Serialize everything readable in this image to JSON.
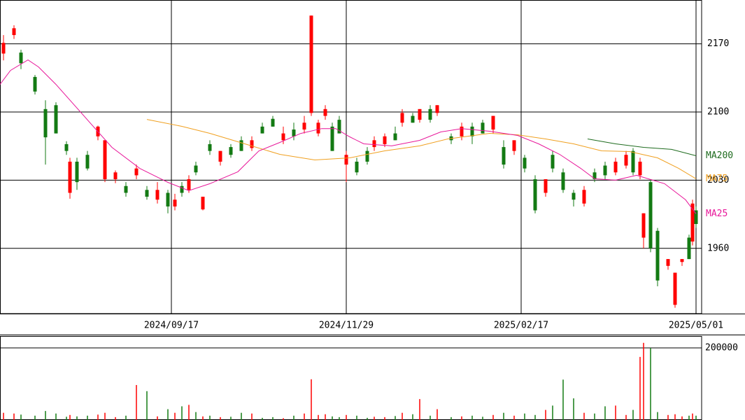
{
  "chart_data": {
    "type": "candlestick",
    "x": [
      1,
      4,
      6,
      10,
      13,
      16,
      19,
      20,
      22,
      25,
      28,
      30,
      33,
      36,
      39,
      42,
      45,
      48,
      50,
      52,
      54,
      56,
      58,
      60,
      63,
      66,
      69,
      72,
      75,
      78,
      81,
      84,
      87,
      89,
      91,
      93,
      95,
      97,
      99,
      102,
      105,
      107,
      110,
      113,
      115,
      118,
      120,
      123,
      125,
      129,
      132,
      135,
      138,
      141,
      144,
      147,
      150,
      153,
      156,
      158,
      161,
      164,
      167,
      170,
      173,
      176,
      179,
      181,
      183,
      184,
      186,
      188,
      191,
      193,
      195,
      197,
      198,
      199
    ],
    "open": [
      2160,
      2179,
      2161,
      2136,
      2103,
      2107,
      2067,
      2017,
      2049,
      2056,
      2075,
      2031,
      2031,
      2024,
      2035,
      2020,
      2010,
      2017,
      2003,
      2024,
      2020,
      2045,
      2000,
      2067,
      2049,
      2064,
      2071,
      2063,
      2085,
      2093,
      2071,
      2082,
      2082,
      2099,
      2078,
      2096,
      2085,
      2092,
      2046,
      2049,
      2060,
      2064,
      2067,
      2078,
      2089,
      2096,
      2092,
      2103,
      2099,
      2075,
      2075,
      2085,
      2089,
      2082,
      2064,
      2060,
      2053,
      2031,
      2017,
      2056,
      2038,
      2017,
      2006,
      2038,
      2045,
      2038,
      2045,
      2060,
      2035,
      1971,
      2028,
      1978,
      1942,
      1902,
      1946,
      1971,
      1967,
      1999
    ],
    "high": [
      2179,
      2189,
      2164,
      2138,
      2112,
      2110,
      2070,
      2053,
      2053,
      2060,
      2086,
      2071,
      2040,
      2028,
      2046,
      2024,
      2028,
      2020,
      2016,
      2028,
      2035,
      2049,
      2013,
      2071,
      2060,
      2067,
      2075,
      2075,
      2089,
      2096,
      2085,
      2089,
      2096,
      2199,
      2092,
      2107,
      2089,
      2096,
      2060,
      2053,
      2064,
      2075,
      2078,
      2085,
      2103,
      2099,
      2103,
      2107,
      2107,
      2078,
      2089,
      2089,
      2092,
      2096,
      2071,
      2071,
      2056,
      2035,
      2031,
      2060,
      2042,
      2020,
      2024,
      2042,
      2049,
      2053,
      2060,
      2063,
      2053,
      1996,
      2031,
      1981,
      1949,
      1935,
      1949,
      1974,
      2010,
      2003
    ],
    "low": [
      2153,
      2175,
      2144,
      2118,
      2046,
      2078,
      2056,
      2011,
      2020,
      2040,
      2071,
      2028,
      2027,
      2013,
      2031,
      2010,
      2006,
      1996,
      1999,
      2013,
      2017,
      2035,
      1999,
      2056,
      2045,
      2053,
      2060,
      2060,
      2078,
      2085,
      2067,
      2071,
      2078,
      2096,
      2075,
      2092,
      2060,
      2078,
      2028,
      2035,
      2046,
      2060,
      2064,
      2071,
      2085,
      2089,
      2089,
      2089,
      2096,
      2067,
      2071,
      2067,
      2078,
      2078,
      2042,
      2056,
      2038,
      1996,
      2013,
      2038,
      2017,
      2003,
      2003,
      2028,
      2031,
      2035,
      2042,
      2035,
      2031,
      1960,
      1956,
      1921,
      1938,
      1899,
      1942,
      1949,
      1963,
      1981
    ],
    "close": [
      2171,
      2186,
      2150,
      2121,
      2074,
      2078,
      2060,
      2049,
      2028,
      2042,
      2085,
      2071,
      2038,
      2017,
      2042,
      2013,
      2020,
      2003,
      2010,
      2017,
      2031,
      2038,
      2013,
      2060,
      2060,
      2056,
      2060,
      2071,
      2078,
      2085,
      2078,
      2075,
      2089,
      2199,
      2089,
      2103,
      2060,
      2078,
      2056,
      2038,
      2049,
      2071,
      2075,
      2071,
      2099,
      2089,
      2103,
      2092,
      2107,
      2071,
      2085,
      2075,
      2078,
      2096,
      2046,
      2071,
      2042,
      1999,
      2031,
      2042,
      2020,
      2010,
      2020,
      2031,
      2035,
      2049,
      2056,
      2038,
      2049,
      1996,
      1960,
      1927,
      1949,
      1935,
      1949,
      1949,
      2006,
      1985
    ],
    "up_color": "#ff0000",
    "down_color": "#137a13",
    "xlim": [
      0,
      200.6
    ],
    "xticks": [
      {
        "value": 49,
        "label": "2024/09/17"
      },
      {
        "value": 99,
        "label": "2024/11/29"
      },
      {
        "value": 149,
        "label": "2025/02/17"
      },
      {
        "value": 199,
        "label": "2025/05/01"
      }
    ],
    "ylim": [
      1893,
      2215
    ],
    "yticks": [
      2170,
      2100,
      2030,
      1960
    ],
    "grid": true,
    "series": [
      {
        "name": "MA200",
        "color": "#1e6b1e",
        "x": [
          168,
          176,
          184,
          192,
          199
        ],
        "values": [
          2072.3,
          2067.3,
          2063.7,
          2061.6,
          2055.1
        ]
      },
      {
        "name": "MA75",
        "color": "#f0a020",
        "x": [
          42,
          52,
          60,
          70,
          80,
          90,
          100,
          110,
          120,
          128,
          140,
          148,
          156,
          164,
          172,
          180,
          188,
          194,
          199
        ],
        "values": [
          2092.4,
          2085.3,
          2078.1,
          2067.3,
          2056.5,
          2050.8,
          2052.9,
          2060.1,
          2065.2,
          2072.3,
          2078.1,
          2076.6,
          2072.3,
          2067.3,
          2060.1,
          2059.4,
          2052.9,
          2042.2,
          2031.4
        ]
      },
      {
        "name": "MA25",
        "color": "#e8179a",
        "x": [
          0,
          3,
          8,
          11,
          16,
          24,
          32,
          40,
          48,
          54,
          60,
          68,
          74,
          80,
          86,
          92,
          96,
          100,
          104,
          112,
          120,
          126,
          132,
          140,
          148,
          154,
          160,
          166,
          170,
          176,
          182,
          190,
          196,
          199
        ],
        "values": [
          2128.3,
          2142.7,
          2153.5,
          2146.3,
          2128.3,
          2096,
          2063.7,
          2042,
          2027.8,
          2019.2,
          2026.4,
          2038.6,
          2060,
          2068.7,
          2078,
          2083,
          2083,
          2074.5,
          2067.3,
          2065.2,
          2070.9,
          2079.5,
          2083,
          2080.2,
          2075.9,
          2067.3,
          2056.5,
          2042.2,
          2031.4,
          2030,
          2035,
          2026.4,
          2009.9,
          1995.5
        ]
      }
    ],
    "volume": {
      "values": [
        20000,
        18000,
        15000,
        12000,
        25000,
        18000,
        9000,
        14000,
        10000,
        12000,
        15000,
        20000,
        8000,
        12000,
        97000,
        80000,
        10000,
        30000,
        20000,
        38000,
        42000,
        22000,
        10000,
        12000,
        8000,
        9000,
        20000,
        18000,
        6000,
        8000,
        5000,
        12000,
        18000,
        113000,
        14000,
        16000,
        10000,
        8000,
        14000,
        12000,
        6000,
        9000,
        8000,
        11000,
        20000,
        16000,
        58000,
        12000,
        30000,
        8000,
        10000,
        12000,
        9000,
        14000,
        20000,
        12000,
        18000,
        14000,
        28000,
        40000,
        112000,
        60000,
        20000,
        18000,
        38000,
        40000,
        14000,
        28000,
        175000,
        214000,
        200000,
        22000,
        14000,
        16000,
        10000,
        12000,
        18000,
        12000
      ],
      "ylim": [
        0,
        233000
      ],
      "yticks": [
        200000
      ]
    }
  }
}
